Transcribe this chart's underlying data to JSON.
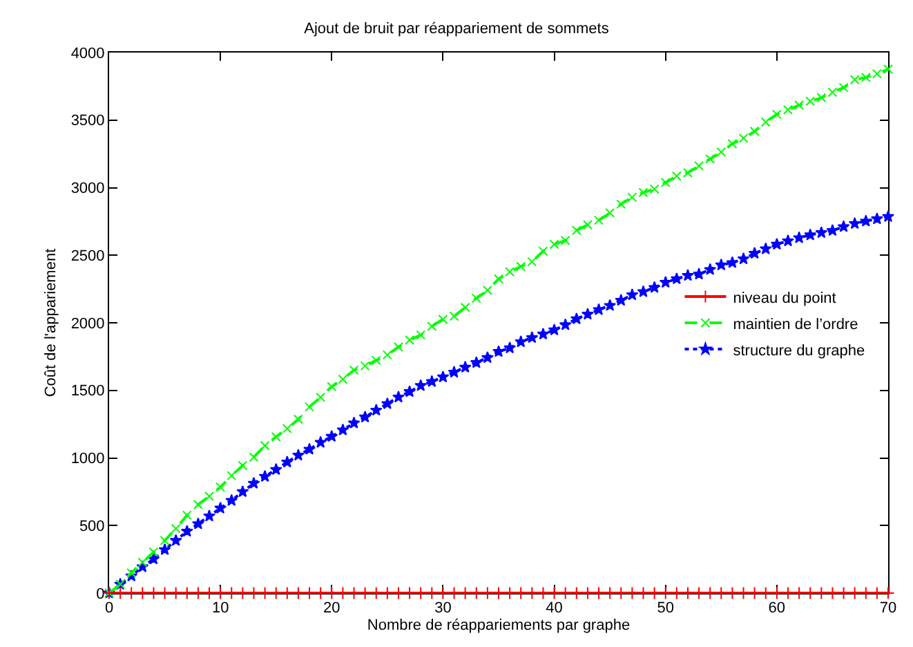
{
  "chart_data": {
    "type": "line",
    "title": "Ajout de bruit par réappariement de sommets",
    "xlabel": "Nombre de réappariements par graphe",
    "ylabel": "Coût de l'appariement",
    "x": [
      0,
      1,
      2,
      3,
      4,
      5,
      6,
      7,
      8,
      9,
      10,
      11,
      12,
      13,
      14,
      15,
      16,
      17,
      18,
      19,
      20,
      21,
      22,
      23,
      24,
      25,
      26,
      27,
      28,
      29,
      30,
      31,
      32,
      33,
      34,
      35,
      36,
      37,
      38,
      39,
      40,
      41,
      42,
      43,
      44,
      45,
      46,
      47,
      48,
      49,
      50,
      51,
      52,
      53,
      54,
      55,
      56,
      57,
      58,
      59,
      60,
      61,
      62,
      63,
      64,
      65,
      66,
      67,
      68,
      69,
      70
    ],
    "xlim": [
      0,
      70
    ],
    "xticks": [
      0,
      10,
      20,
      30,
      40,
      50,
      60,
      70
    ],
    "ylim": [
      0,
      4000
    ],
    "yticks": [
      0,
      500,
      1000,
      1500,
      2000,
      2500,
      3000,
      3500,
      4000
    ],
    "grid": false,
    "legend": "right",
    "series": [
      {
        "name": "niveau du point",
        "color": "#ff0000",
        "marker": "cross",
        "line_style": "solid",
        "values": [
          0,
          0,
          0,
          0,
          0,
          0,
          0,
          0,
          0,
          0,
          0,
          0,
          0,
          0,
          0,
          0,
          0,
          0,
          0,
          0,
          0,
          0,
          0,
          0,
          0,
          0,
          0,
          0,
          0,
          0,
          0,
          0,
          0,
          0,
          0,
          0,
          0,
          0,
          0,
          0,
          0,
          0,
          0,
          0,
          0,
          0,
          0,
          0,
          0,
          0,
          0,
          0,
          0,
          0,
          0,
          0,
          0,
          0,
          0,
          0,
          0,
          0,
          0,
          0,
          0,
          0,
          0,
          0,
          0,
          0,
          0
        ]
      },
      {
        "name": "maintien de l’ordre",
        "color": "#00ff00",
        "marker": "x",
        "line_style": "dashed",
        "values": [
          0,
          65,
          150,
          228,
          303,
          389,
          477,
          576,
          655,
          716,
          784,
          869,
          944,
          1006,
          1091,
          1156,
          1217,
          1286,
          1378,
          1449,
          1528,
          1582,
          1650,
          1681,
          1722,
          1763,
          1821,
          1872,
          1910,
          1974,
          2026,
          2049,
          2114,
          2182,
          2240,
          2325,
          2377,
          2417,
          2452,
          2530,
          2581,
          2609,
          2684,
          2725,
          2759,
          2813,
          2878,
          2929,
          2964,
          2990,
          3038,
          3086,
          3110,
          3161,
          3212,
          3263,
          3325,
          3366,
          3417,
          3485,
          3543,
          3577,
          3611,
          3639,
          3666,
          3706,
          3741,
          3799,
          3816,
          3843,
          3877
        ]
      },
      {
        "name": "structure du graphe",
        "color": "#0000ff",
        "marker": "star",
        "line_style": "dotted",
        "values": [
          0,
          65,
          126,
          194,
          252,
          321,
          389,
          457,
          512,
          570,
          628,
          685,
          750,
          812,
          863,
          914,
          969,
          1020,
          1064,
          1115,
          1159,
          1207,
          1258,
          1302,
          1353,
          1401,
          1450,
          1490,
          1535,
          1565,
          1599,
          1634,
          1671,
          1705,
          1742,
          1787,
          1814,
          1859,
          1890,
          1916,
          1947,
          1985,
          2029,
          2063,
          2097,
          2128,
          2166,
          2207,
          2230,
          2261,
          2299,
          2325,
          2350,
          2360,
          2394,
          2428,
          2445,
          2473,
          2514,
          2547,
          2581,
          2606,
          2629,
          2650,
          2667,
          2683,
          2711,
          2734,
          2752,
          2769,
          2786
        ]
      }
    ]
  }
}
